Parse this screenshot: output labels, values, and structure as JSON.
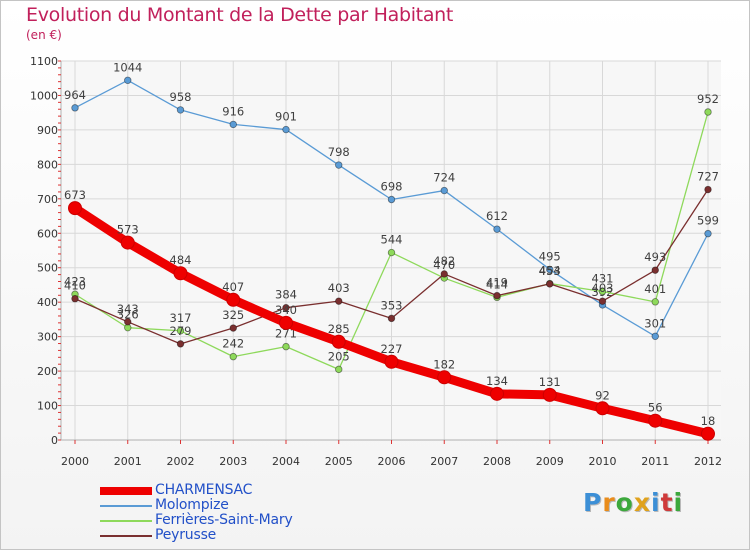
{
  "title": "Evolution du Montant de la Dette par Habitant",
  "subtitle": "(en €)",
  "logo": {
    "letters": [
      "P",
      "r",
      "o",
      "x",
      "i",
      "t",
      "i"
    ],
    "colors": [
      "#3c8fd6",
      "#e98c1b",
      "#3ca83c",
      "#e0a21c",
      "#3c8fd6",
      "#cf3a3a",
      "#3ca83c"
    ]
  },
  "chart_data": {
    "type": "line",
    "x": [
      "2000",
      "2001",
      "2002",
      "2003",
      "2004",
      "2005",
      "2006",
      "2007",
      "2008",
      "2009",
      "2010",
      "2011",
      "2012"
    ],
    "ylim": [
      0,
      1100
    ],
    "yticks": [
      0,
      100,
      200,
      300,
      400,
      500,
      600,
      700,
      800,
      900,
      1000,
      1100
    ],
    "grid": true,
    "legend": "bottom-left",
    "series": [
      {
        "name": "CHARMENSAC",
        "color": "#ee0000",
        "values": [
          673,
          573,
          484,
          407,
          340,
          285,
          227,
          182,
          134,
          131,
          92,
          56,
          18
        ]
      },
      {
        "name": "Molompize",
        "color": "#5a9bd5",
        "values": [
          964,
          1044,
          958,
          916,
          901,
          798,
          698,
          724,
          612,
          495,
          392,
          301,
          599
        ]
      },
      {
        "name": "Ferrières-Saint-Mary",
        "color": "#8ed95b",
        "values": [
          423,
          326,
          317,
          242,
          271,
          205,
          544,
          470,
          414,
          454,
          431,
          401,
          952
        ]
      },
      {
        "name": "Peyrusse",
        "color": "#7a2f2f",
        "values": [
          410,
          343,
          279,
          325,
          384,
          403,
          353,
          482,
          419,
          453,
          403,
          493,
          727
        ]
      }
    ]
  }
}
